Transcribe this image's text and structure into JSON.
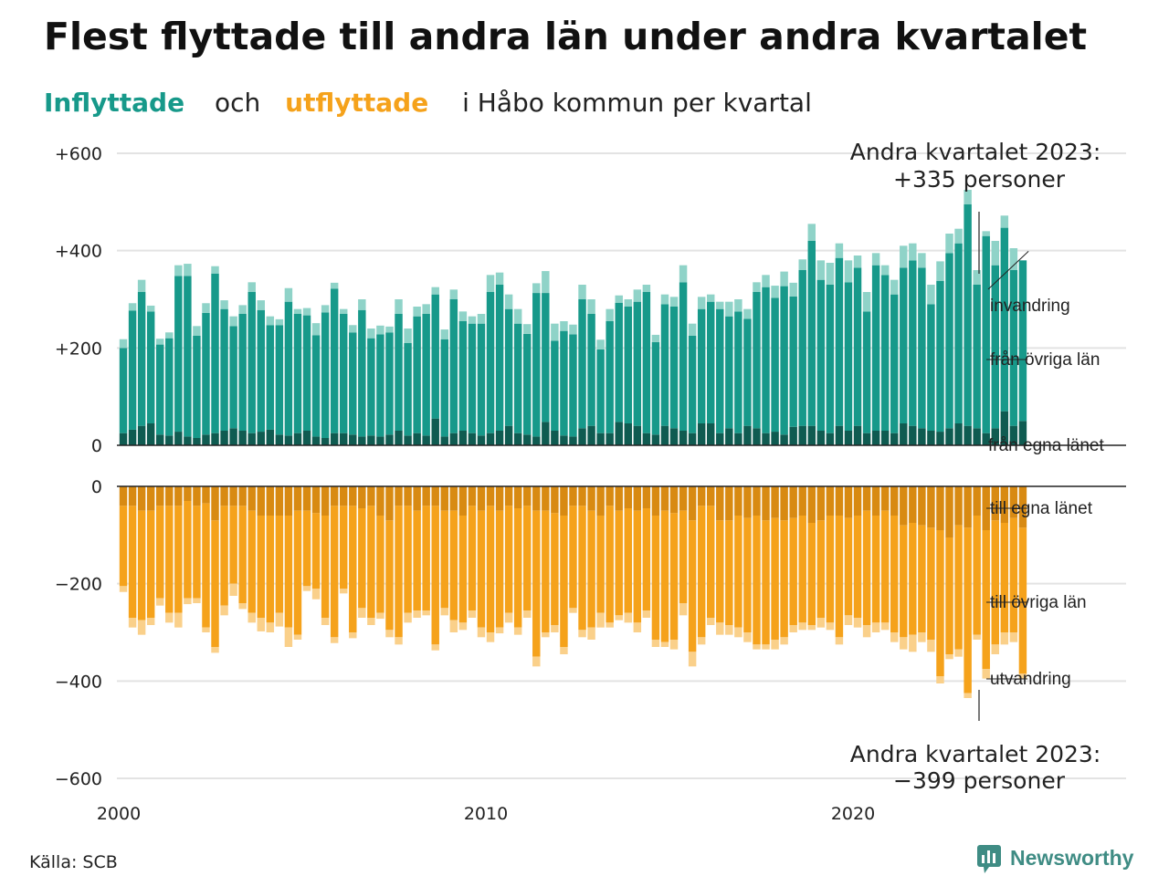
{
  "chart_data": {
    "type": "bar",
    "title": "Flest flyttade till andra län under andra kvartalet",
    "subtitle": {
      "inflow_word": "Inflyttade",
      "and_word": "och",
      "outflow_word": "utflyttade",
      "rest": "i Håbo kommun per kvartal"
    },
    "x_ticks": [
      "2000",
      "2010",
      "2020"
    ],
    "x_range": [
      2000,
      2023.75
    ],
    "upper_panel": {
      "ylim": [
        0,
        620
      ],
      "y_ticks": [
        0,
        200,
        400,
        600
      ],
      "y_tick_labels": [
        "0",
        "+200",
        "+400",
        "+600"
      ],
      "series_labels": [
        "invandring",
        "från övriga län",
        "från egna länet"
      ],
      "colors": {
        "invandring": "#8fd3c8",
        "från övriga län": "#17998a",
        "från egna länet": "#0f5b51"
      },
      "annotation": {
        "line1": "Andra kvartalet 2023:",
        "line2": "+335 personer"
      }
    },
    "lower_panel": {
      "ylim": [
        -620,
        0
      ],
      "y_ticks": [
        0,
        -200,
        -400,
        -600
      ],
      "y_tick_labels": [
        "0",
        "−200",
        "−400",
        "−600"
      ],
      "series_labels": [
        "till egna länet",
        "till övriga län",
        "utvandring"
      ],
      "colors": {
        "till egna länet": "#d88a12",
        "till övriga län": "#f5a21b",
        "utvandring": "#fad08a"
      },
      "annotation": {
        "line1": "Andra kvartalet 2023:",
        "line2": "−399 personer"
      }
    },
    "quarters_start": "2000 Q1",
    "series": [
      {
        "name": "från egna länet",
        "values": [
          25,
          32,
          40,
          45,
          22,
          20,
          28,
          18,
          15,
          22,
          25,
          30,
          35,
          30,
          25,
          28,
          32,
          22,
          20,
          25,
          30,
          18,
          15,
          25,
          25,
          22,
          18,
          20,
          18,
          22,
          30,
          20,
          25,
          20,
          55,
          18,
          25,
          30,
          25,
          20,
          25,
          30,
          40,
          25,
          22,
          18,
          48,
          30,
          20,
          18,
          35,
          40,
          25,
          25,
          48,
          45,
          40,
          25,
          22,
          40,
          35,
          30,
          25,
          45,
          45,
          25,
          35,
          25,
          40,
          35,
          25,
          28,
          22,
          38,
          40,
          40,
          30,
          25,
          40,
          30,
          40,
          25,
          30,
          30,
          25,
          45,
          40,
          35,
          30,
          28,
          35,
          45,
          40,
          35,
          25,
          35,
          70,
          40,
          50
        ]
      },
      {
        "name": "från övriga län",
        "values": [
          175,
          245,
          275,
          230,
          185,
          200,
          320,
          330,
          210,
          250,
          328,
          250,
          210,
          240,
          290,
          250,
          215,
          225,
          275,
          245,
          237,
          208,
          258,
          297,
          245,
          210,
          260,
          200,
          210,
          210,
          240,
          190,
          240,
          250,
          255,
          200,
          275,
          225,
          225,
          230,
          290,
          300,
          240,
          225,
          207,
          295,
          265,
          185,
          215,
          210,
          265,
          230,
          172,
          230,
          245,
          240,
          255,
          290,
          190,
          250,
          250,
          305,
          200,
          235,
          250,
          255,
          230,
          250,
          220,
          280,
          300,
          275,
          305,
          268,
          320,
          380,
          310,
          305,
          345,
          305,
          325,
          250,
          340,
          320,
          285,
          320,
          340,
          330,
          260,
          310,
          360,
          370,
          455,
          295,
          405,
          335,
          377,
          320,
          330
        ]
      },
      {
        "name": "invandring",
        "values": [
          18,
          15,
          25,
          12,
          12,
          12,
          22,
          25,
          20,
          20,
          15,
          18,
          20,
          18,
          20,
          20,
          18,
          12,
          28,
          10,
          15,
          25,
          15,
          12,
          10,
          15,
          22,
          20,
          18,
          12,
          30,
          30,
          20,
          20,
          15,
          20,
          20,
          20,
          15,
          20,
          35,
          25,
          30,
          30,
          20,
          20,
          45,
          35,
          20,
          20,
          30,
          30,
          20,
          25,
          15,
          15,
          25,
          15,
          15,
          20,
          20,
          35,
          25,
          25,
          15,
          15,
          30,
          25,
          20,
          20,
          25,
          25,
          30,
          28,
          22,
          35,
          40,
          45,
          30,
          45,
          25,
          40,
          25,
          20,
          30,
          45,
          35,
          30,
          40,
          40,
          40,
          30,
          30,
          30,
          10,
          50,
          25,
          45,
          0
        ]
      },
      {
        "name": "till egna länet",
        "values": [
          -40,
          -40,
          -50,
          -50,
          -40,
          -40,
          -40,
          -30,
          -40,
          -35,
          -70,
          -40,
          -40,
          -40,
          -50,
          -60,
          -60,
          -60,
          -60,
          -50,
          -50,
          -55,
          -60,
          -40,
          -40,
          -40,
          -45,
          -40,
          -60,
          -70,
          -40,
          -40,
          -50,
          -40,
          -40,
          -50,
          -50,
          -60,
          -40,
          -50,
          -40,
          -50,
          -40,
          -45,
          -40,
          -50,
          -50,
          -55,
          -60,
          -40,
          -40,
          -50,
          -60,
          -40,
          -50,
          -45,
          -50,
          -45,
          -60,
          -50,
          -55,
          -50,
          -70,
          -40,
          -40,
          -70,
          -70,
          -60,
          -65,
          -60,
          -70,
          -65,
          -70,
          -65,
          -60,
          -75,
          -70,
          -60,
          -60,
          -65,
          -60,
          -50,
          -60,
          -50,
          -60,
          -80,
          -75,
          -80,
          -85,
          -90,
          -105,
          -80,
          -85,
          -60,
          -90,
          -70,
          -75,
          -65,
          -85
        ]
      },
      {
        "name": "till övriga län",
        "values": [
          -165,
          -230,
          -225,
          -220,
          -190,
          -220,
          -220,
          -200,
          -190,
          -255,
          -260,
          -205,
          -160,
          -200,
          -210,
          -210,
          -220,
          -200,
          -230,
          -255,
          -155,
          -155,
          -210,
          -270,
          -170,
          -260,
          -205,
          -230,
          -200,
          -225,
          -270,
          -220,
          -205,
          -215,
          -285,
          -200,
          -225,
          -220,
          -215,
          -240,
          -260,
          -240,
          -220,
          -245,
          -215,
          -300,
          -250,
          -230,
          -270,
          -210,
          -255,
          -240,
          -200,
          -240,
          -215,
          -215,
          -230,
          -210,
          -255,
          -270,
          -260,
          -190,
          -270,
          -270,
          -230,
          -210,
          -215,
          -230,
          -235,
          -265,
          -255,
          -250,
          -240,
          -220,
          -220,
          -210,
          -200,
          -220,
          -250,
          -200,
          -210,
          -235,
          -220,
          -230,
          -240,
          -230,
          -230,
          -220,
          -230,
          -300,
          -240,
          -255,
          -340,
          -245,
          -285,
          -255,
          -225,
          -235,
          -300
        ]
      },
      {
        "name": "utvandring",
        "values": [
          -12,
          -20,
          -30,
          -15,
          -15,
          -20,
          -30,
          -12,
          -10,
          -10,
          -12,
          -20,
          -25,
          -12,
          -20,
          -28,
          -20,
          -28,
          -40,
          -10,
          -10,
          -22,
          -15,
          -12,
          -10,
          -12,
          -20,
          -15,
          -12,
          -15,
          -15,
          -20,
          -15,
          -10,
          -12,
          -15,
          -25,
          -15,
          -15,
          -20,
          -20,
          -12,
          -20,
          -15,
          -15,
          -20,
          -10,
          -15,
          -15,
          -10,
          -15,
          -25,
          -30,
          -10,
          -10,
          -20,
          -20,
          -15,
          -15,
          -10,
          -20,
          -25,
          -30,
          -15,
          -15,
          -25,
          -20,
          -20,
          -20,
          -10,
          -10,
          -20,
          -15,
          -15,
          -15,
          -10,
          -20,
          -15,
          -15,
          -20,
          -20,
          -25,
          -20,
          -15,
          -20,
          -25,
          -35,
          -20,
          -25,
          -15,
          -10,
          -15,
          -10,
          -10,
          -20,
          -20,
          -25,
          -20,
          -10
        ]
      }
    ]
  },
  "source": {
    "label": "Källa: SCB"
  },
  "logo": {
    "text": "Newsworthy"
  }
}
